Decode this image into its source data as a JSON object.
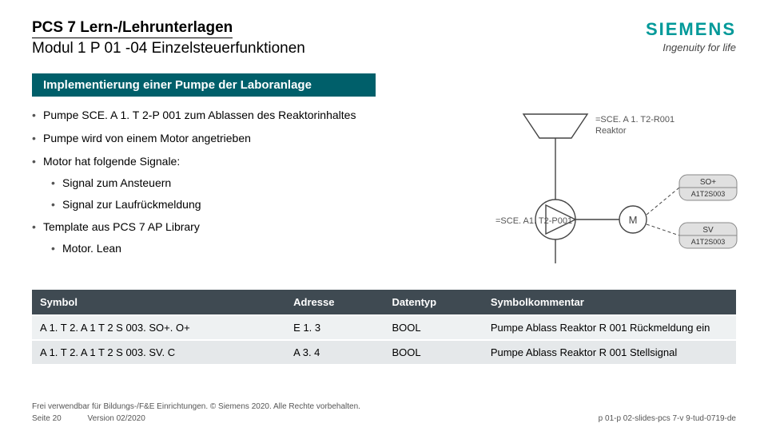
{
  "header": {
    "title1": "PCS 7 Lern-/Lehrunterlagen",
    "title2": "Modul 1 P 01 -04 Einzelsteuerfunktionen",
    "logo": "SIEMENS",
    "tagline": "Ingenuity for life"
  },
  "section_title": "Implementierung einer Pumpe der Laboranlage",
  "bullets": [
    {
      "text": "Pumpe SCE. A 1. T 2-P 001 zum Ablassen des Reaktorinhaltes"
    },
    {
      "text": "Pumpe wird von einem Motor angetrieben"
    },
    {
      "text": "Motor hat folgende Signale:",
      "children": [
        {
          "text": "Signal zum Ansteuern"
        },
        {
          "text": "Signal zur Laufrückmeldung"
        }
      ]
    },
    {
      "text": "Template aus PCS 7 AP Library",
      "children": [
        {
          "text": "Motor. Lean"
        }
      ]
    }
  ],
  "diagram": {
    "reactor_label": "=SCE. A 1. T2-R001\nReaktor",
    "pump_label": "=SCE. A1. T2-P001",
    "motor_letter": "M",
    "tag1_top": "SO+",
    "tag1_bottom": "A1T2S003",
    "tag2_top": "SV",
    "tag2_bottom": "A1T2S003",
    "line_color": "#444444",
    "label_color": "#555555",
    "tag_bg": "#e0e0e0",
    "tag_border": "#888888",
    "stroke_width": 1.4
  },
  "table": {
    "headers": [
      "Symbol",
      "Adresse",
      "Datentyp",
      "Symbolkommentar"
    ],
    "rows": [
      [
        "A 1. T 2. A 1 T 2 S 003. SO+. O+",
        "E 1. 3",
        "BOOL",
        "Pumpe Ablass Reaktor R 001 Rückmeldung ein"
      ],
      [
        "A 1. T 2. A 1 T 2 S 003. SV. C",
        "A 3. 4",
        "BOOL",
        "Pumpe Ablass Reaktor R 001 Stellsignal"
      ]
    ]
  },
  "footer": {
    "line1": "Frei verwendbar für Bildungs-/F&E Einrichtungen. © Siemens 2020. Alle Rechte vorbehalten.",
    "page": "Seite 20",
    "version": "Version 02/2020",
    "right": "p 01-p 02-slides-pcs 7-v 9-tud-0719-de"
  }
}
